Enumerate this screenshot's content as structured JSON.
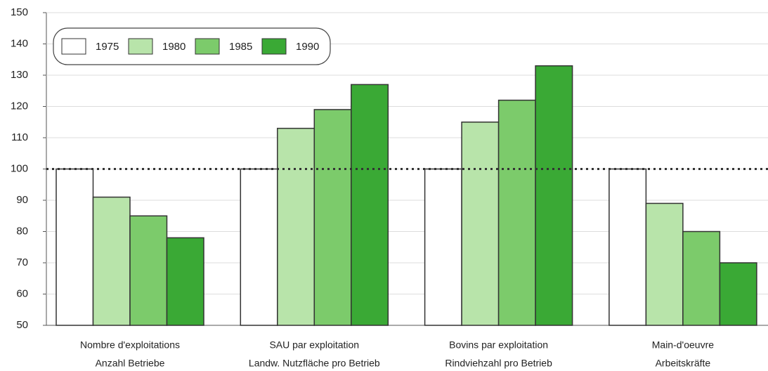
{
  "chart_data": {
    "type": "bar",
    "categories": [
      [
        "Nombre d'exploitations",
        "Anzahl Betriebe"
      ],
      [
        "SAU par exploitation",
        "Landw. Nutzfläche pro Betrieb"
      ],
      [
        "Bovins par exploitation",
        "Rindviehzahl pro Betrieb"
      ],
      [
        "Main-d'oeuvre",
        "Arbeitskräfte"
      ]
    ],
    "series": [
      {
        "name": "1975",
        "color": "#ffffff",
        "values": [
          100,
          100,
          100,
          100
        ]
      },
      {
        "name": "1980",
        "color": "#b8e4aa",
        "values": [
          91,
          113,
          115,
          89
        ]
      },
      {
        "name": "1985",
        "color": "#7ccb6b",
        "values": [
          85,
          119,
          122,
          80
        ]
      },
      {
        "name": "1990",
        "color": "#3aa935",
        "values": [
          78,
          127,
          133,
          70
        ]
      }
    ],
    "ylim": [
      50,
      150
    ],
    "yticks": [
      50,
      60,
      70,
      80,
      90,
      100,
      110,
      120,
      130,
      140,
      150
    ],
    "reference_line": 100,
    "grid": true,
    "legend": "top-left"
  }
}
